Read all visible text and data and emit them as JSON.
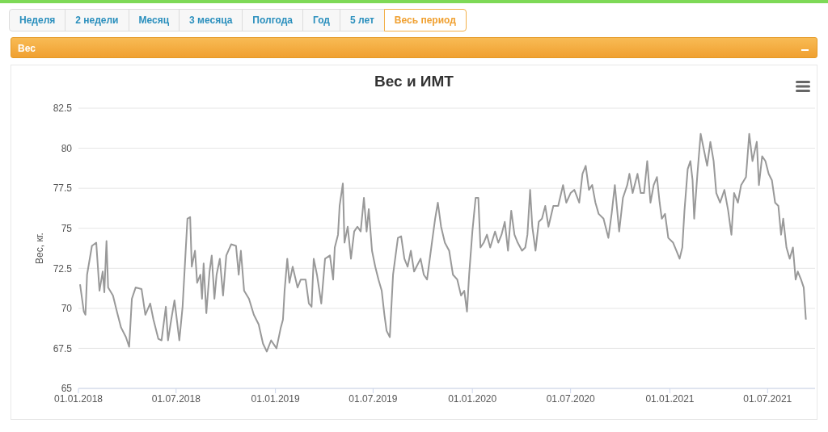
{
  "chart_data": {
    "type": "line",
    "title": "Вес и ИМТ",
    "ylabel": "Вес, кг.",
    "annotations": [
      "Неделя",
      "2 недели",
      "Месяц",
      "3 месяца",
      "Полгода",
      "Год",
      "5 лет",
      "Весь период",
      "Вес"
    ],
    "xlim": [
      "2018-01-01",
      "2021-09-27"
    ],
    "xticks": [
      {
        "value": "2018-01-01",
        "label": "01.01.2018"
      },
      {
        "value": "2018-07-01",
        "label": "01.07.2018"
      },
      {
        "value": "2019-01-01",
        "label": "01.01.2019"
      },
      {
        "value": "2019-07-01",
        "label": "01.07.2019"
      },
      {
        "value": "2020-01-01",
        "label": "01.01.2020"
      },
      {
        "value": "2020-07-01",
        "label": "01.07.2020"
      },
      {
        "value": "2021-01-01",
        "label": "01.01.2021"
      },
      {
        "value": "2021-07-01",
        "label": "01.07.2021"
      }
    ],
    "ylim": [
      65,
      82.5
    ],
    "yticks": [
      65,
      67.5,
      70,
      72.5,
      75,
      77.5,
      80,
      82.5
    ],
    "grid": "y",
    "legend": false,
    "marker": "none",
    "line_style": "solid",
    "x": [
      "2018-01-04",
      "2018-01-11",
      "2018-01-14",
      "2018-01-17",
      "2018-01-26",
      "2018-02-03",
      "2018-02-06",
      "2018-02-09",
      "2018-02-15",
      "2018-02-18",
      "2018-02-22",
      "2018-02-25",
      "2018-03-06",
      "2018-03-14",
      "2018-03-21",
      "2018-03-30",
      "2018-04-05",
      "2018-04-10",
      "2018-04-17",
      "2018-04-28",
      "2018-05-05",
      "2018-05-14",
      "2018-05-20",
      "2018-05-29",
      "2018-06-04",
      "2018-06-12",
      "2018-06-16",
      "2018-06-22",
      "2018-06-28",
      "2018-07-07",
      "2018-07-13",
      "2018-07-22",
      "2018-07-27",
      "2018-07-30",
      "2018-08-05",
      "2018-08-09",
      "2018-08-15",
      "2018-08-18",
      "2018-08-21",
      "2018-08-26",
      "2018-09-01",
      "2018-09-05",
      "2018-09-10",
      "2018-09-14",
      "2018-09-20",
      "2018-09-26",
      "2018-10-02",
      "2018-10-11",
      "2018-10-20",
      "2018-10-25",
      "2018-10-29",
      "2018-11-04",
      "2018-11-13",
      "2018-11-22",
      "2018-12-01",
      "2018-12-09",
      "2018-12-16",
      "2018-12-24",
      "2019-01-03",
      "2019-01-11",
      "2019-01-15",
      "2019-01-18",
      "2019-01-23",
      "2019-01-27",
      "2019-02-02",
      "2019-02-11",
      "2019-02-17",
      "2019-02-26",
      "2019-03-04",
      "2019-03-09",
      "2019-03-13",
      "2019-03-19",
      "2019-03-27",
      "2019-04-03",
      "2019-04-12",
      "2019-04-18",
      "2019-04-21",
      "2019-04-27",
      "2019-04-30",
      "2019-05-06",
      "2019-05-09",
      "2019-05-15",
      "2019-05-21",
      "2019-05-27",
      "2019-06-02",
      "2019-06-08",
      "2019-06-14",
      "2019-06-19",
      "2019-06-23",
      "2019-06-29",
      "2019-07-05",
      "2019-07-11",
      "2019-07-17",
      "2019-07-22",
      "2019-07-26",
      "2019-08-01",
      "2019-08-07",
      "2019-08-16",
      "2019-08-22",
      "2019-08-28",
      "2019-09-03",
      "2019-09-09",
      "2019-09-15",
      "2019-09-27",
      "2019-10-03",
      "2019-10-09",
      "2019-10-18",
      "2019-10-24",
      "2019-10-29",
      "2019-11-04",
      "2019-11-11",
      "2019-11-19",
      "2019-11-26",
      "2019-12-04",
      "2019-12-11",
      "2019-12-17",
      "2019-12-22",
      "2019-12-26",
      "2020-01-01",
      "2020-01-07",
      "2020-01-12",
      "2020-01-16",
      "2020-01-22",
      "2020-01-28",
      "2020-02-03",
      "2020-02-12",
      "2020-02-18",
      "2020-02-24",
      "2020-03-01",
      "2020-03-07",
      "2020-03-13",
      "2020-03-19",
      "2020-03-25",
      "2020-04-02",
      "2020-04-08",
      "2020-04-12",
      "2020-04-17",
      "2020-04-21",
      "2020-04-27",
      "2020-05-03",
      "2020-05-09",
      "2020-05-15",
      "2020-05-21",
      "2020-05-30",
      "2020-06-08",
      "2020-06-17",
      "2020-06-23",
      "2020-07-01",
      "2020-07-08",
      "2020-07-17",
      "2020-07-23",
      "2020-07-29",
      "2020-08-04",
      "2020-08-10",
      "2020-08-16",
      "2020-08-22",
      "2020-08-31",
      "2020-09-09",
      "2020-09-15",
      "2020-09-21",
      "2020-09-29",
      "2020-10-06",
      "2020-10-14",
      "2020-10-18",
      "2020-10-24",
      "2020-11-02",
      "2020-11-08",
      "2020-11-14",
      "2020-11-20",
      "2020-11-26",
      "2020-12-02",
      "2020-12-08",
      "2020-12-13",
      "2020-12-17",
      "2020-12-23",
      "2020-12-29",
      "2021-01-07",
      "2021-01-13",
      "2021-01-19",
      "2021-01-24",
      "2021-01-28",
      "2021-02-03",
      "2021-02-08",
      "2021-02-12",
      "2021-02-15",
      "2021-02-21",
      "2021-02-27",
      "2021-03-05",
      "2021-03-11",
      "2021-03-17",
      "2021-03-23",
      "2021-03-28",
      "2021-04-04",
      "2021-04-12",
      "2021-04-19",
      "2021-04-25",
      "2021-04-30",
      "2021-05-07",
      "2021-05-13",
      "2021-05-22",
      "2021-05-28",
      "2021-06-03",
      "2021-06-11",
      "2021-06-15",
      "2021-06-21",
      "2021-06-27",
      "2021-07-03",
      "2021-07-09",
      "2021-07-15",
      "2021-07-21",
      "2021-07-26",
      "2021-07-30",
      "2021-08-05",
      "2021-08-11",
      "2021-08-17",
      "2021-08-22",
      "2021-08-26",
      "2021-09-01",
      "2021-09-06",
      "2021-09-10"
    ],
    "series": [
      {
        "color": "#999999",
        "values": [
          71.5,
          69.8,
          69.6,
          72.1,
          73.9,
          74.1,
          72.6,
          71.1,
          72.3,
          71.0,
          74.2,
          71.3,
          70.8,
          69.7,
          68.8,
          68.2,
          67.6,
          70.6,
          71.3,
          71.2,
          69.6,
          70.3,
          69.3,
          68.1,
          68.0,
          70.1,
          68.0,
          69.3,
          70.5,
          68.0,
          70.1,
          75.6,
          75.7,
          72.6,
          73.6,
          71.6,
          72.1,
          70.6,
          72.8,
          69.7,
          72.3,
          73.3,
          70.6,
          72.1,
          73.1,
          70.8,
          73.3,
          74.0,
          73.9,
          72.1,
          73.6,
          71.1,
          70.6,
          69.6,
          69.0,
          67.8,
          67.3,
          68.0,
          67.5,
          68.8,
          69.3,
          71.1,
          73.1,
          71.6,
          72.6,
          71.3,
          71.8,
          71.8,
          70.3,
          70.1,
          73.1,
          72.1,
          70.3,
          73.1,
          73.3,
          71.8,
          73.8,
          74.6,
          76.4,
          77.8,
          74.1,
          75.1,
          73.1,
          74.8,
          75.1,
          74.8,
          76.9,
          74.8,
          76.2,
          73.6,
          72.6,
          71.8,
          71.1,
          69.6,
          68.6,
          68.2,
          72.1,
          74.4,
          74.5,
          73.1,
          72.6,
          73.6,
          72.3,
          73.1,
          72.1,
          71.8,
          74.1,
          75.6,
          76.6,
          75.1,
          74.1,
          73.6,
          72.1,
          71.8,
          70.8,
          71.1,
          69.8,
          72.1,
          74.8,
          76.9,
          76.9,
          73.8,
          74.1,
          74.6,
          73.8,
          74.8,
          74.1,
          74.6,
          75.4,
          73.6,
          76.1,
          74.6,
          74.1,
          73.6,
          73.8,
          74.6,
          77.4,
          75.1,
          73.6,
          75.4,
          75.6,
          76.4,
          75.1,
          76.4,
          76.4,
          77.7,
          76.6,
          77.2,
          77.4,
          76.6,
          78.4,
          78.9,
          77.4,
          77.7,
          76.6,
          75.9,
          75.6,
          74.4,
          75.9,
          77.7,
          74.8,
          76.9,
          77.7,
          78.4,
          77.2,
          78.4,
          77.2,
          77.2,
          79.2,
          76.6,
          77.7,
          78.2,
          76.6,
          75.6,
          75.9,
          74.4,
          74.1,
          73.6,
          73.1,
          73.8,
          76.1,
          78.7,
          79.2,
          78.0,
          75.6,
          78.4,
          80.9,
          79.9,
          78.9,
          80.4,
          79.2,
          77.2,
          76.6,
          77.4,
          76.1,
          74.6,
          77.2,
          76.6,
          77.7,
          78.2,
          80.9,
          79.2,
          80.4,
          77.7,
          79.5,
          79.2,
          78.4,
          78.0,
          76.6,
          76.4,
          74.6,
          75.6,
          73.8,
          73.1,
          73.8,
          71.8,
          72.3,
          71.8,
          71.3,
          69.3
        ]
      }
    ]
  }
}
